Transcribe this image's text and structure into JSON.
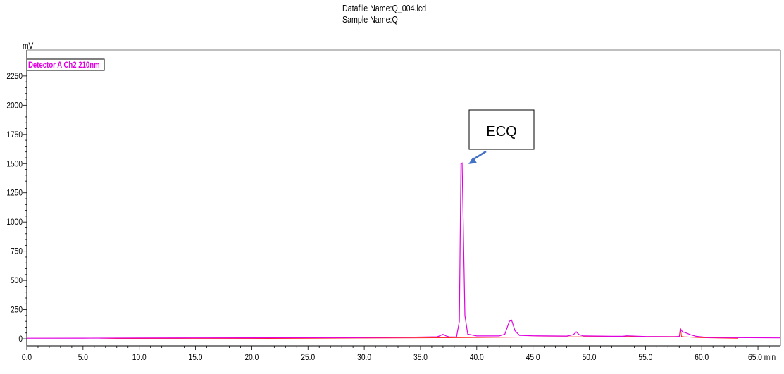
{
  "header": {
    "datafile": "Datafile Name:Q_004.lcd",
    "sample": "Sample Name:Q"
  },
  "chart_data": {
    "type": "line",
    "ylabel": "mV",
    "xunit": "min",
    "xlim": [
      0,
      67
    ],
    "ylim": [
      -60,
      2400
    ],
    "xticks": [
      0,
      5,
      10,
      15,
      20,
      25,
      30,
      35,
      40,
      45,
      50,
      55,
      60,
      65
    ],
    "xtick_labels": [
      "0.0",
      "5.0",
      "10.0",
      "15.0",
      "20.0",
      "25.0",
      "30.0",
      "35.0",
      "40.0",
      "45.0",
      "50.0",
      "55.0",
      "60.0",
      "65.0 min"
    ],
    "yticks": [
      0,
      250,
      500,
      750,
      1000,
      1250,
      1500,
      1750,
      2000,
      2250
    ],
    "ytick_labels": [
      "0",
      "250",
      "500",
      "750",
      "1000",
      "1250",
      "1500",
      "1750",
      "2000",
      "2250"
    ],
    "series": [
      {
        "name": "Detector A Ch2 210nm",
        "color": "#e000e0",
        "x": [
          0,
          5,
          10,
          15,
          20,
          25,
          30,
          34,
          36.5,
          37.0,
          37.3,
          37.6,
          38.2,
          38.45,
          38.6,
          38.7,
          38.8,
          38.95,
          39.2,
          40,
          42,
          42.5,
          42.9,
          43.1,
          43.4,
          43.8,
          45,
          48,
          48.6,
          48.85,
          49.1,
          49.5,
          52,
          53,
          53.3,
          55,
          57.5,
          58.0,
          58.15,
          58.3,
          58.5,
          59.0,
          59.5,
          60.5,
          67
        ],
        "y": [
          5,
          6,
          7,
          8,
          9,
          10,
          11,
          14,
          18,
          38,
          24,
          16,
          16,
          150,
          1500,
          1505,
          1000,
          200,
          40,
          25,
          25,
          40,
          150,
          160,
          70,
          30,
          26,
          24,
          36,
          60,
          36,
          25,
          22,
          22,
          26,
          20,
          18,
          20,
          80,
          58,
          55,
          35,
          22,
          12,
          8
        ]
      },
      {
        "name": "",
        "color": "#ff2020",
        "x": [
          6.5,
          8,
          15,
          20,
          25,
          30,
          35,
          38,
          40,
          45,
          50,
          55,
          57.5,
          58.0,
          58.1,
          58.2,
          58.4,
          60,
          63.2
        ],
        "y": [
          -2,
          0,
          2,
          3,
          5,
          7,
          9,
          10,
          12,
          16,
          18,
          20,
          20,
          20,
          95,
          20,
          18,
          10,
          5
        ]
      }
    ],
    "annotations": [
      {
        "text": "ECQ",
        "x": 39.2,
        "y": 1490
      }
    ]
  }
}
